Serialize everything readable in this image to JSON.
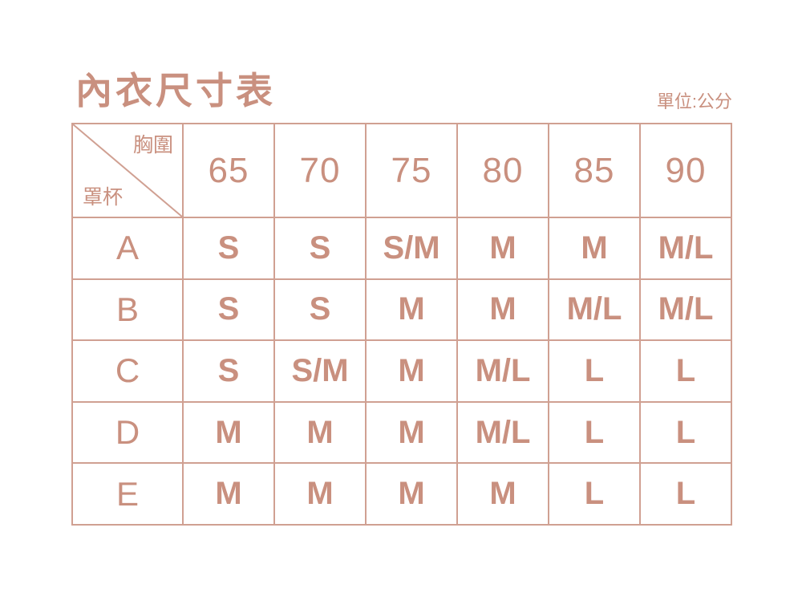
{
  "title": "內衣尺寸表",
  "unit_note": "單位:公分",
  "table": {
    "corner": {
      "top_right_label": "胸圍",
      "bottom_left_label": "罩杯"
    },
    "column_headers": [
      "65",
      "70",
      "75",
      "80",
      "85",
      "90"
    ],
    "rows": [
      {
        "label": "A",
        "values": [
          "S",
          "S",
          "S/M",
          "M",
          "M",
          "M/L"
        ]
      },
      {
        "label": "B",
        "values": [
          "S",
          "S",
          "M",
          "M",
          "M/L",
          "M/L"
        ]
      },
      {
        "label": "C",
        "values": [
          "S",
          "S/M",
          "M",
          "M/L",
          "L",
          "L"
        ]
      },
      {
        "label": "D",
        "values": [
          "M",
          "M",
          "M",
          "M/L",
          "L",
          "L"
        ]
      },
      {
        "label": "E",
        "values": [
          "M",
          "M",
          "M",
          "M",
          "L",
          "L"
        ]
      }
    ]
  },
  "colors": {
    "accent": "#c9907f",
    "border": "#d0a092",
    "background": "#ffffff"
  },
  "chart_data": {
    "type": "table",
    "title": "內衣尺寸表",
    "unit": "單位:公分",
    "column_axis_label": "胸圍",
    "row_axis_label": "罩杯",
    "columns": [
      65,
      70,
      75,
      80,
      85,
      90
    ],
    "rows": [
      {
        "cup": "A",
        "sizes": [
          "S",
          "S",
          "S/M",
          "M",
          "M",
          "M/L"
        ]
      },
      {
        "cup": "B",
        "sizes": [
          "S",
          "S",
          "M",
          "M",
          "M/L",
          "M/L"
        ]
      },
      {
        "cup": "C",
        "sizes": [
          "S",
          "S/M",
          "M",
          "M/L",
          "L",
          "L"
        ]
      },
      {
        "cup": "D",
        "sizes": [
          "M",
          "M",
          "M",
          "M/L",
          "L",
          "L"
        ]
      },
      {
        "cup": "E",
        "sizes": [
          "M",
          "M",
          "M",
          "M",
          "L",
          "L"
        ]
      }
    ],
    "legend_position": "none",
    "grid": true
  }
}
